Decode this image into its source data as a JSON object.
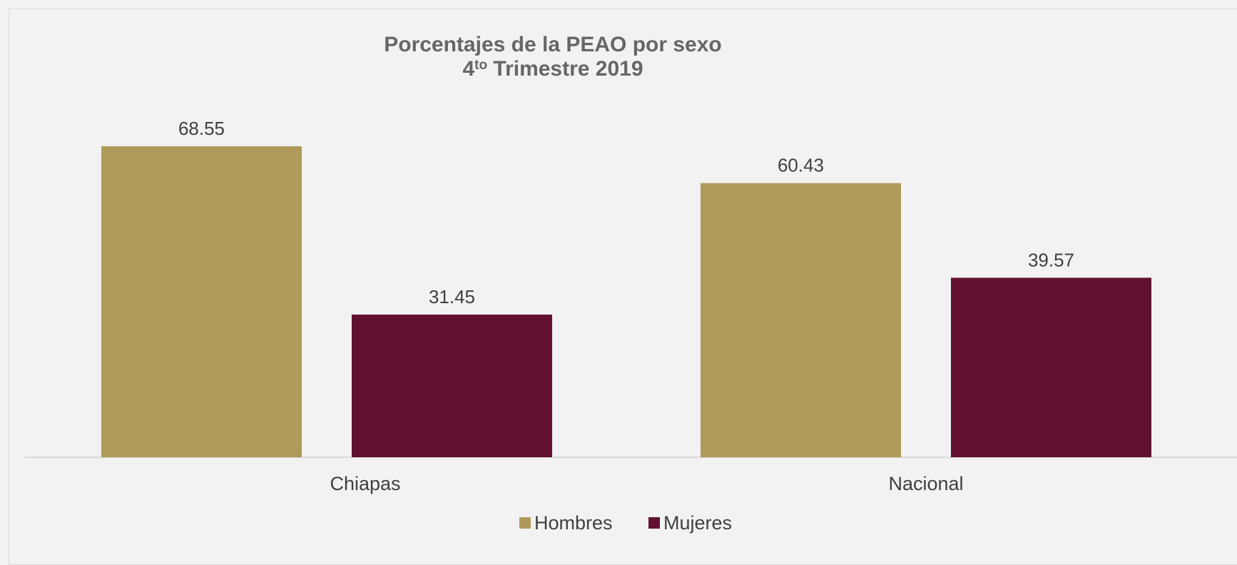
{
  "chart_data": {
    "type": "bar",
    "title": {
      "line1": "Porcentajes de la PEAO  por sexo",
      "line2_number": "4",
      "line2_superscript": "to",
      "line2_rest": " Trimestre 2019"
    },
    "categories": [
      "Chiapas",
      "Nacional"
    ],
    "series": [
      {
        "name": "Hombres",
        "color": "#b09a5b",
        "values": [
          68.55,
          60.43
        ],
        "labels": [
          "68.55",
          "60.43"
        ]
      },
      {
        "name": "Mujeres",
        "color": "#621132",
        "values": [
          31.45,
          39.57
        ],
        "labels": [
          "31.45",
          "39.57"
        ]
      }
    ],
    "ylim": [
      0,
      70
    ],
    "grid": false,
    "legend": "bottom",
    "data_labels": true
  }
}
